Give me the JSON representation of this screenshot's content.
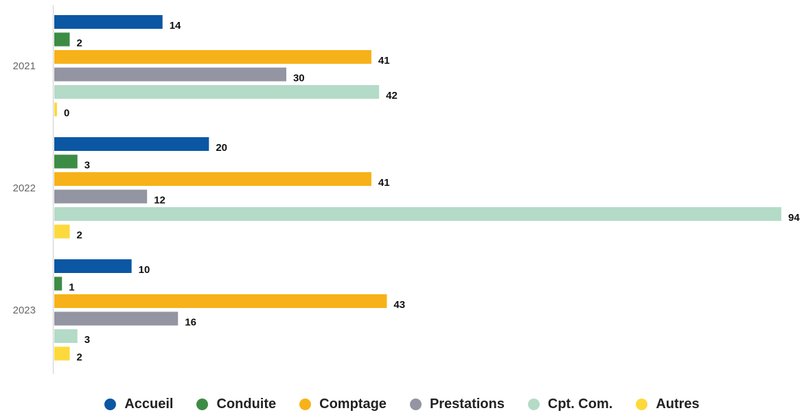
{
  "chart_data": {
    "type": "bar",
    "orientation": "horizontal",
    "categories": [
      "2021",
      "2022",
      "2023"
    ],
    "series": [
      {
        "name": "Accueil",
        "color": "#0b57a4",
        "values": [
          14,
          20,
          10
        ]
      },
      {
        "name": "Conduite",
        "color": "#3d8c45",
        "values": [
          2,
          3,
          1
        ]
      },
      {
        "name": "Comptage",
        "color": "#f7b219",
        "values": [
          41,
          41,
          43
        ]
      },
      {
        "name": "Prestations",
        "color": "#9395a2",
        "values": [
          30,
          12,
          16
        ]
      },
      {
        "name": "Cpt. Com.",
        "color": "#b4dbc7",
        "values": [
          42,
          94,
          3
        ]
      },
      {
        "name": "Autres",
        "color": "#fed93c",
        "values": [
          0,
          2,
          2
        ]
      }
    ],
    "xlim": [
      0,
      94
    ],
    "grid": false,
    "legend_position": "bottom",
    "data_labels": true
  }
}
